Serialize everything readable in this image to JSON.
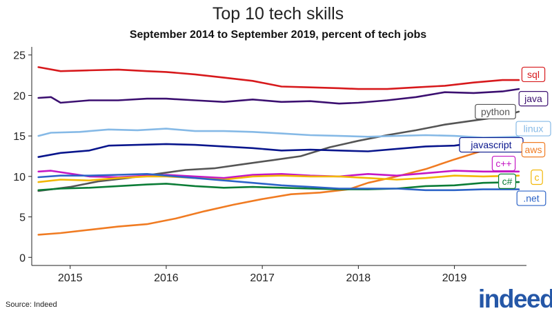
{
  "chart_data": {
    "type": "line",
    "title": "Top 10 tech skills",
    "subtitle": "September 2014 to September 2019, percent of tech jobs",
    "xlabel": "",
    "ylabel": "",
    "xlim": [
      2014.6,
      2019.75
    ],
    "ylim": [
      -1,
      26
    ],
    "x_ticks": [
      2015,
      2016,
      2017,
      2018,
      2019
    ],
    "x_tick_labels": [
      "2015",
      "2016",
      "2017",
      "2018",
      "2019"
    ],
    "y_ticks": [
      0,
      5,
      10,
      15,
      20,
      25
    ],
    "y_tick_labels": [
      "0",
      "5",
      "10",
      "15",
      "20",
      "25"
    ],
    "grid": false,
    "legend": "direct labels at right end of lines",
    "series": [
      {
        "name": "sql",
        "color": "#d7191c",
        "x": [
          2014.67,
          2014.9,
          2015.2,
          2015.5,
          2015.8,
          2016.0,
          2016.3,
          2016.6,
          2016.9,
          2017.2,
          2017.5,
          2017.8,
          2018.0,
          2018.3,
          2018.6,
          2018.9,
          2019.2,
          2019.5,
          2019.67
        ],
        "y": [
          23.5,
          23.0,
          23.1,
          23.2,
          23.0,
          22.9,
          22.6,
          22.2,
          21.8,
          21.1,
          21.0,
          20.9,
          20.8,
          20.8,
          21.0,
          21.2,
          21.6,
          21.9,
          21.9
        ]
      },
      {
        "name": "java",
        "color": "#3b0f70",
        "x": [
          2014.67,
          2014.8,
          2014.9,
          2015.2,
          2015.5,
          2015.8,
          2016.0,
          2016.3,
          2016.6,
          2016.9,
          2017.2,
          2017.5,
          2017.8,
          2018.0,
          2018.3,
          2018.6,
          2018.9,
          2019.2,
          2019.5,
          2019.67
        ],
        "y": [
          19.7,
          19.8,
          19.1,
          19.4,
          19.4,
          19.6,
          19.6,
          19.4,
          19.2,
          19.5,
          19.2,
          19.3,
          19.0,
          19.1,
          19.4,
          19.8,
          20.4,
          20.3,
          20.5,
          20.8
        ]
      },
      {
        "name": "python",
        "color": "#555555",
        "x": [
          2014.67,
          2015.0,
          2015.3,
          2015.6,
          2015.9,
          2016.2,
          2016.5,
          2016.8,
          2017.1,
          2017.4,
          2017.7,
          2018.0,
          2018.3,
          2018.6,
          2018.9,
          2019.2,
          2019.5,
          2019.67
        ],
        "y": [
          8.2,
          8.7,
          9.4,
          9.8,
          10.3,
          10.8,
          11.0,
          11.5,
          12.0,
          12.5,
          13.6,
          14.4,
          15.1,
          15.7,
          16.4,
          16.9,
          17.4,
          18.0
        ]
      },
      {
        "name": "linux",
        "color": "#85b9e6",
        "x": [
          2014.67,
          2014.8,
          2015.1,
          2015.4,
          2015.7,
          2016.0,
          2016.3,
          2016.6,
          2016.9,
          2017.2,
          2017.5,
          2017.8,
          2018.1,
          2018.4,
          2018.7,
          2019.0,
          2019.3,
          2019.67
        ],
        "y": [
          15.0,
          15.4,
          15.5,
          15.8,
          15.7,
          15.9,
          15.6,
          15.6,
          15.5,
          15.3,
          15.1,
          15.0,
          14.9,
          15.0,
          15.1,
          15.0,
          14.8,
          14.9
        ]
      },
      {
        "name": "javascript",
        "color": "#08158c",
        "x": [
          2014.67,
          2014.9,
          2015.2,
          2015.4,
          2015.7,
          2016.0,
          2016.3,
          2016.6,
          2016.9,
          2017.2,
          2017.5,
          2017.8,
          2018.1,
          2018.4,
          2018.7,
          2019.0,
          2019.3,
          2019.67
        ],
        "y": [
          12.4,
          12.9,
          13.2,
          13.8,
          13.9,
          14.0,
          13.9,
          13.7,
          13.5,
          13.2,
          13.3,
          13.2,
          13.1,
          13.4,
          13.7,
          13.8,
          14.3,
          14.4
        ]
      },
      {
        "name": "aws",
        "color": "#f07b22",
        "x": [
          2014.67,
          2014.9,
          2015.2,
          2015.5,
          2015.8,
          2016.1,
          2016.4,
          2016.7,
          2017.0,
          2017.3,
          2017.6,
          2017.9,
          2018.1,
          2018.4,
          2018.7,
          2019.0,
          2019.3,
          2019.5,
          2019.67
        ],
        "y": [
          2.8,
          3.0,
          3.4,
          3.8,
          4.1,
          4.8,
          5.7,
          6.5,
          7.2,
          7.8,
          8.0,
          8.4,
          9.2,
          10.0,
          10.9,
          12.1,
          13.2,
          13.8,
          14.1
        ]
      },
      {
        "name": "c++",
        "color": "#c417c4",
        "x": [
          2014.67,
          2014.8,
          2015.2,
          2015.5,
          2015.8,
          2016.0,
          2016.3,
          2016.6,
          2016.9,
          2017.2,
          2017.5,
          2017.8,
          2018.1,
          2018.4,
          2018.7,
          2019.0,
          2019.3,
          2019.67
        ],
        "y": [
          10.6,
          10.7,
          10.0,
          9.9,
          10.1,
          10.2,
          10.0,
          9.8,
          10.2,
          10.3,
          10.1,
          10.0,
          10.3,
          10.1,
          10.4,
          10.7,
          10.6,
          10.6
        ]
      },
      {
        "name": "c",
        "color": "#f2b705",
        "x": [
          2014.67,
          2014.9,
          2015.2,
          2015.5,
          2015.8,
          2016.0,
          2016.3,
          2016.6,
          2016.9,
          2017.2,
          2017.5,
          2017.8,
          2018.1,
          2018.4,
          2018.7,
          2019.0,
          2019.3,
          2019.67
        ],
        "y": [
          9.3,
          9.6,
          9.5,
          9.8,
          10.0,
          10.0,
          9.8,
          9.6,
          10.0,
          10.1,
          10.0,
          10.0,
          9.8,
          9.6,
          9.8,
          10.1,
          10.0,
          10.1
        ]
      },
      {
        "name": "c#",
        "color": "#0b7c36",
        "x": [
          2014.67,
          2014.9,
          2015.2,
          2015.5,
          2015.8,
          2016.0,
          2016.3,
          2016.6,
          2016.9,
          2017.2,
          2017.5,
          2017.8,
          2018.1,
          2018.4,
          2018.7,
          2019.0,
          2019.3,
          2019.67
        ],
        "y": [
          8.3,
          8.5,
          8.6,
          8.8,
          9.0,
          9.1,
          8.8,
          8.6,
          8.7,
          8.6,
          8.5,
          8.4,
          8.4,
          8.5,
          8.8,
          8.9,
          9.2,
          9.3
        ]
      },
      {
        "name": ".net",
        "color": "#2c63c7",
        "x": [
          2014.67,
          2014.9,
          2015.2,
          2015.5,
          2015.8,
          2016.0,
          2016.3,
          2016.6,
          2016.9,
          2017.2,
          2017.5,
          2017.8,
          2018.1,
          2018.4,
          2018.7,
          2019.0,
          2019.3,
          2019.67
        ],
        "y": [
          9.9,
          10.1,
          10.1,
          10.2,
          10.3,
          10.1,
          9.8,
          9.5,
          9.2,
          8.9,
          8.7,
          8.5,
          8.5,
          8.5,
          8.3,
          8.3,
          8.4,
          8.4
        ]
      }
    ]
  },
  "source_label": "Source: Indeed",
  "logo_text": "indeed"
}
